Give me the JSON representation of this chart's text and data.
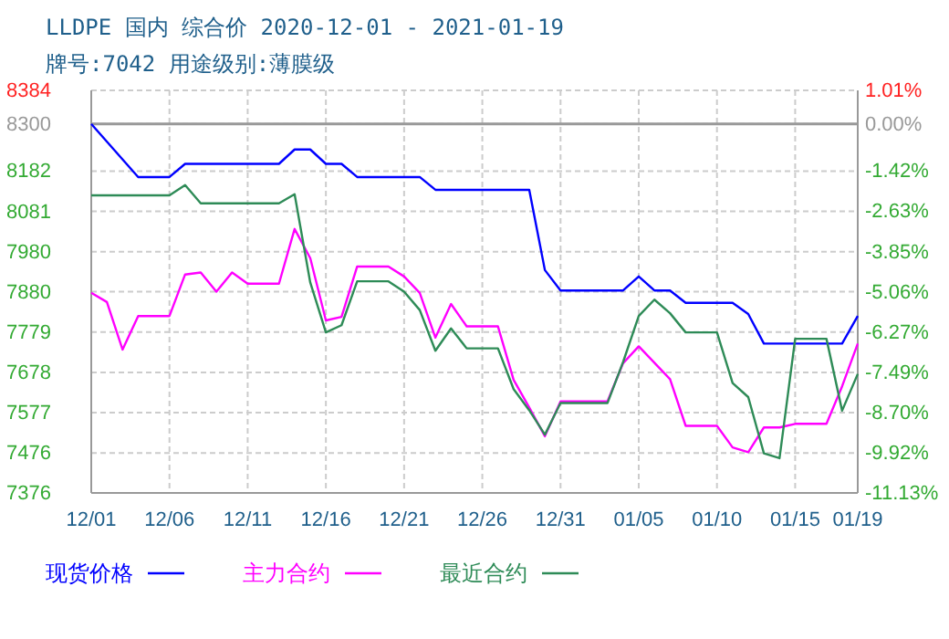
{
  "chart_data": {
    "type": "line",
    "title": "LLDPE 国内 综合价 2020-12-01 - 2021-01-19",
    "subtitle": "牌号:7042 用途级别:薄膜级",
    "xlim": [
      "2020-12-01",
      "2021-01-19"
    ],
    "xticks": [
      {
        "value": "2020-12-01",
        "label": "12/01"
      },
      {
        "value": "2020-12-06",
        "label": "12/06"
      },
      {
        "value": "2020-12-11",
        "label": "12/11"
      },
      {
        "value": "2020-12-16",
        "label": "12/16"
      },
      {
        "value": "2020-12-21",
        "label": "12/21"
      },
      {
        "value": "2020-12-26",
        "label": "12/26"
      },
      {
        "value": "2020-12-31",
        "label": "12/31"
      },
      {
        "value": "2021-01-05",
        "label": "01/05"
      },
      {
        "value": "2021-01-10",
        "label": "01/10"
      },
      {
        "value": "2021-01-15",
        "label": "01/15"
      },
      {
        "value": "2021-01-19",
        "label": "01/19"
      }
    ],
    "ylim": [
      7376,
      8384
    ],
    "yticks": [
      7376,
      7476,
      7577,
      7678,
      7779,
      7880,
      7980,
      8081,
      8182,
      8300,
      8384
    ],
    "y2lim": [
      -11.13,
      1.01
    ],
    "y2ticks": [
      {
        "value": -11.13,
        "label": "-11.13%"
      },
      {
        "value": -9.92,
        "label": "-9.92%"
      },
      {
        "value": -8.7,
        "label": "-8.70%"
      },
      {
        "value": -7.49,
        "label": "-7.49%"
      },
      {
        "value": -6.27,
        "label": "-6.27%"
      },
      {
        "value": -5.06,
        "label": "-5.06%"
      },
      {
        "value": -3.85,
        "label": "-3.85%"
      },
      {
        "value": -2.63,
        "label": "-2.63%"
      },
      {
        "value": -1.42,
        "label": "-1.42%"
      },
      {
        "value": 0,
        "label": "0.00%"
      },
      {
        "value": 1.01,
        "label": "1.01%"
      }
    ],
    "grid": true,
    "legend": "bottom",
    "line_style": "solid",
    "marker": "none",
    "ref_lines": [
      {
        "axis": "y",
        "value": 8300,
        "color": "#999999"
      }
    ],
    "series": [
      {
        "name": "现货价格",
        "color": "#0000ff",
        "x": [
          "2020-12-01",
          "2020-12-04",
          "2020-12-06",
          "2020-12-07",
          "2020-12-13",
          "2020-12-14",
          "2020-12-15",
          "2020-12-16",
          "2020-12-17",
          "2020-12-18",
          "2020-12-22",
          "2020-12-23",
          "2020-12-29",
          "2020-12-30",
          "2020-12-31",
          "2021-01-04",
          "2021-01-05",
          "2021-01-06",
          "2021-01-07",
          "2021-01-08",
          "2021-01-11",
          "2021-01-12",
          "2021-01-13",
          "2021-01-18",
          "2021-01-19"
        ],
        "values": [
          8300,
          8167,
          8167,
          8200,
          8200,
          8236,
          8236,
          8200,
          8200,
          8167,
          8167,
          8135,
          8135,
          7934,
          7883,
          7883,
          7918,
          7883,
          7883,
          7852,
          7852,
          7824,
          7750,
          7750,
          7819
        ]
      },
      {
        "name": "主力合约",
        "color": "#ff00ff",
        "x": [
          "2020-12-01",
          "2020-12-02",
          "2020-12-03",
          "2020-12-04",
          "2020-12-06",
          "2020-12-07",
          "2020-12-08",
          "2020-12-09",
          "2020-12-10",
          "2020-12-11",
          "2020-12-13",
          "2020-12-14",
          "2020-12-15",
          "2020-12-16",
          "2020-12-17",
          "2020-12-18",
          "2020-12-20",
          "2020-12-21",
          "2020-12-22",
          "2020-12-23",
          "2020-12-24",
          "2020-12-25",
          "2020-12-27",
          "2020-12-28",
          "2020-12-29",
          "2020-12-30",
          "2020-12-31",
          "2021-01-03",
          "2021-01-04",
          "2021-01-05",
          "2021-01-07",
          "2021-01-08",
          "2021-01-10",
          "2021-01-11",
          "2021-01-12",
          "2021-01-13",
          "2021-01-14",
          "2021-01-15",
          "2021-01-17",
          "2021-01-18",
          "2021-01-19"
        ],
        "values": [
          7877,
          7854,
          7735,
          7819,
          7819,
          7923,
          7928,
          7880,
          7928,
          7900,
          7900,
          8037,
          7964,
          7808,
          7817,
          7943,
          7943,
          7918,
          7877,
          7765,
          7849,
          7793,
          7793,
          7659,
          7590,
          7518,
          7605,
          7605,
          7701,
          7743,
          7661,
          7544,
          7544,
          7490,
          7478,
          7540,
          7540,
          7549,
          7549,
          7643,
          7750
        ]
      },
      {
        "name": "最近合约",
        "color": "#2e8b57",
        "x": [
          "2020-12-01",
          "2020-12-06",
          "2020-12-07",
          "2020-12-08",
          "2020-12-13",
          "2020-12-14",
          "2020-12-15",
          "2020-12-16",
          "2020-12-17",
          "2020-12-18",
          "2020-12-20",
          "2020-12-21",
          "2020-12-22",
          "2020-12-23",
          "2020-12-24",
          "2020-12-25",
          "2020-12-27",
          "2020-12-28",
          "2020-12-29",
          "2020-12-30",
          "2020-12-31",
          "2021-01-03",
          "2021-01-04",
          "2021-01-05",
          "2021-01-06",
          "2021-01-07",
          "2021-01-08",
          "2021-01-10",
          "2021-01-11",
          "2021-01-12",
          "2021-01-13",
          "2021-01-14",
          "2021-01-15",
          "2021-01-17",
          "2021-01-18",
          "2021-01-19"
        ],
        "values": [
          8121,
          8121,
          8147,
          8101,
          8101,
          8124,
          7903,
          7778,
          7796,
          7906,
          7906,
          7880,
          7834,
          7732,
          7788,
          7738,
          7738,
          7636,
          7583,
          7522,
          7601,
          7601,
          7704,
          7819,
          7860,
          7826,
          7778,
          7778,
          7651,
          7616,
          7475,
          7463,
          7762,
          7762,
          7582,
          7674
        ]
      }
    ]
  }
}
